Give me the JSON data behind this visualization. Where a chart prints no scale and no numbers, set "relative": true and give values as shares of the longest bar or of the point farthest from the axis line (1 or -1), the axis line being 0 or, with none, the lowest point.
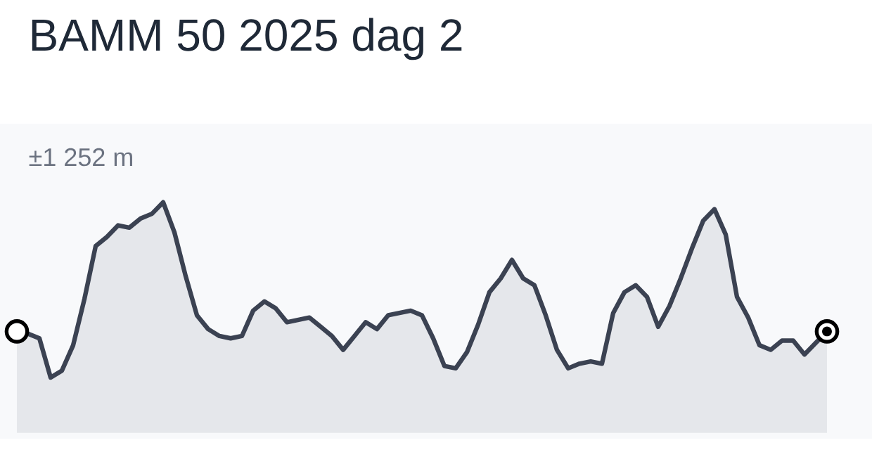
{
  "chart_data": {
    "type": "area",
    "title": "BAMM 50 2025 dag 2",
    "relative": true,
    "color": "#3b4252",
    "annotations": [
      "±1 252 m"
    ],
    "categories": [
      null,
      null,
      null,
      null,
      null,
      null,
      null,
      null,
      null,
      null,
      null,
      null,
      null,
      null,
      null,
      null,
      null,
      null,
      null,
      null,
      null,
      null,
      null,
      null,
      null,
      null,
      null,
      null,
      null,
      null,
      null,
      null,
      null,
      null,
      null,
      null,
      null,
      null,
      null,
      null,
      null,
      null,
      null,
      null,
      null,
      null,
      null,
      null,
      null,
      null,
      null,
      null,
      null,
      null,
      null,
      null,
      null,
      null,
      null,
      null,
      null,
      null,
      null,
      null,
      null,
      null,
      null,
      null,
      null,
      null,
      null,
      null,
      null
    ],
    "values": [
      0.44,
      0.43,
      0.41,
      0.24,
      0.27,
      0.38,
      0.58,
      0.81,
      0.85,
      0.9,
      0.89,
      0.93,
      0.95,
      1.0,
      0.87,
      0.68,
      0.51,
      0.45,
      0.42,
      0.41,
      0.42,
      0.53,
      0.57,
      0.54,
      0.48,
      0.49,
      0.5,
      0.46,
      0.42,
      0.36,
      0.42,
      0.48,
      0.45,
      0.51,
      0.52,
      0.53,
      0.51,
      0.41,
      0.29,
      0.28,
      0.35,
      0.47,
      0.61,
      0.67,
      0.75,
      0.67,
      0.64,
      0.51,
      0.36,
      0.28,
      0.3,
      0.31,
      0.3,
      0.52,
      0.61,
      0.64,
      0.59,
      0.46,
      0.55,
      0.67,
      0.8,
      0.92,
      0.97,
      0.86,
      0.59,
      0.5,
      0.38,
      0.36,
      0.4,
      0.4,
      0.34,
      0.39,
      0.44
    ]
  }
}
